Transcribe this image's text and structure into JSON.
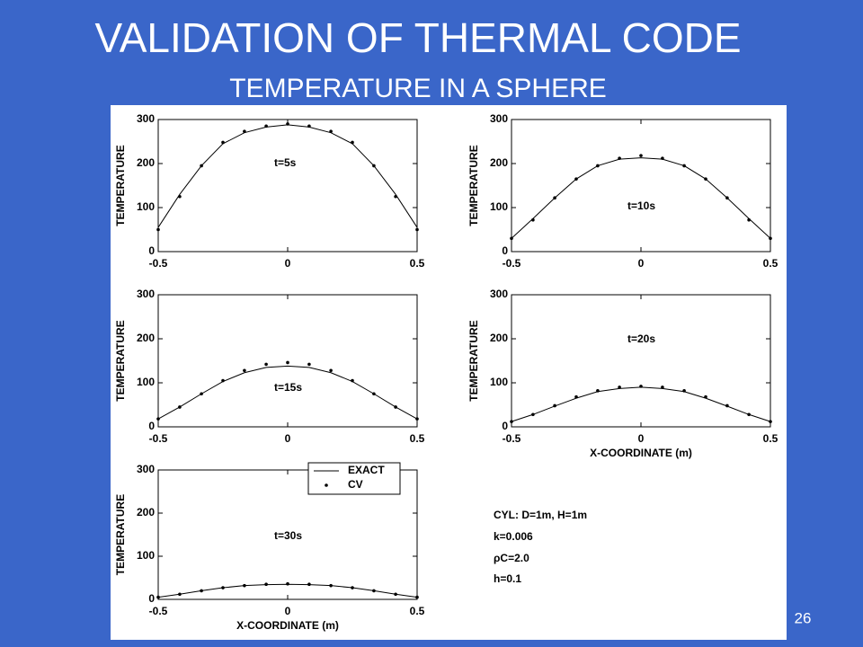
{
  "title": "VALIDATION OF THERMAL CODE",
  "subtitle": "TEMPERATURE IN A SPHERE",
  "page_number": "26",
  "notes": [
    "CYL: D=1m, H=1m",
    "k=0.006",
    "ρC=2.0",
    "h=0.1"
  ],
  "chart_data": [
    {
      "type": "line",
      "annotation": "t=5s",
      "ylabel": "TEMPERATURE",
      "x": [
        -0.5,
        -0.417,
        -0.333,
        -0.25,
        -0.167,
        -0.083,
        0,
        0.083,
        0.167,
        0.25,
        0.333,
        0.417,
        0.5
      ],
      "series": [
        {
          "name": "EXACT",
          "color": "#000000",
          "style": "line",
          "values": [
            55,
            130,
            195,
            245,
            270,
            283,
            288,
            283,
            270,
            245,
            195,
            130,
            55
          ]
        },
        {
          "name": "CV",
          "color": "#000000",
          "style": "markers",
          "values": [
            50,
            125,
            195,
            248,
            273,
            285,
            290,
            285,
            273,
            248,
            195,
            125,
            50
          ]
        }
      ],
      "xlim": [
        -0.5,
        0.5
      ],
      "xticks": [
        -0.5,
        0,
        0.5
      ],
      "ylim": [
        0,
        300
      ],
      "yticks": [
        0,
        100,
        200,
        300
      ]
    },
    {
      "type": "line",
      "annotation": "t=10s",
      "ylabel": "TEMPERATURE",
      "x": [
        -0.5,
        -0.417,
        -0.333,
        -0.25,
        -0.167,
        -0.083,
        0,
        0.083,
        0.167,
        0.25,
        0.333,
        0.417,
        0.5
      ],
      "series": [
        {
          "name": "EXACT",
          "color": "#000000",
          "style": "line",
          "values": [
            30,
            75,
            122,
            165,
            195,
            210,
            213,
            210,
            195,
            165,
            122,
            75,
            30
          ]
        },
        {
          "name": "CV",
          "color": "#000000",
          "style": "markers",
          "values": [
            30,
            72,
            122,
            165,
            195,
            212,
            218,
            212,
            195,
            165,
            122,
            72,
            30
          ]
        }
      ],
      "xlim": [
        -0.5,
        0.5
      ],
      "xticks": [
        -0.5,
        0,
        0.5
      ],
      "ylim": [
        0,
        300
      ],
      "yticks": [
        0,
        100,
        200,
        300
      ]
    },
    {
      "type": "line",
      "annotation": "t=15s",
      "ylabel": "TEMPERATURE",
      "x": [
        -0.5,
        -0.417,
        -0.333,
        -0.25,
        -0.167,
        -0.083,
        0,
        0.083,
        0.167,
        0.25,
        0.333,
        0.417,
        0.5
      ],
      "series": [
        {
          "name": "EXACT",
          "color": "#000000",
          "style": "line",
          "values": [
            18,
            45,
            75,
            103,
            123,
            135,
            138,
            135,
            123,
            103,
            75,
            45,
            18
          ]
        },
        {
          "name": "CV",
          "color": "#000000",
          "style": "markers",
          "values": [
            18,
            45,
            75,
            105,
            128,
            142,
            146,
            142,
            128,
            105,
            75,
            45,
            18
          ]
        }
      ],
      "xlim": [
        -0.5,
        0.5
      ],
      "xticks": [
        -0.5,
        0,
        0.5
      ],
      "ylim": [
        0,
        300
      ],
      "yticks": [
        0,
        100,
        200,
        300
      ]
    },
    {
      "type": "line",
      "annotation": "t=20s",
      "ylabel": "TEMPERATURE",
      "xlabel": "X-COORDINATE (m)",
      "x": [
        -0.5,
        -0.417,
        -0.333,
        -0.25,
        -0.167,
        -0.083,
        0,
        0.083,
        0.167,
        0.25,
        0.333,
        0.417,
        0.5
      ],
      "series": [
        {
          "name": "EXACT",
          "color": "#000000",
          "style": "line",
          "values": [
            12,
            28,
            47,
            65,
            80,
            87,
            90,
            87,
            80,
            65,
            47,
            28,
            12
          ]
        },
        {
          "name": "CV",
          "color": "#000000",
          "style": "markers",
          "values": [
            12,
            28,
            48,
            68,
            82,
            90,
            92,
            90,
            82,
            68,
            48,
            28,
            12
          ]
        }
      ],
      "xlim": [
        -0.5,
        0.5
      ],
      "xticks": [
        -0.5,
        0,
        0.5
      ],
      "ylim": [
        0,
        300
      ],
      "yticks": [
        0,
        100,
        200,
        300
      ]
    },
    {
      "type": "line",
      "annotation": "t=30s",
      "ylabel": "TEMPERATURE",
      "xlabel": "X-COORDINATE (m)",
      "legend": "upper right",
      "x": [
        -0.5,
        -0.417,
        -0.333,
        -0.25,
        -0.167,
        -0.083,
        0,
        0.083,
        0.167,
        0.25,
        0.333,
        0.417,
        0.5
      ],
      "series": [
        {
          "name": "EXACT",
          "color": "#000000",
          "style": "line",
          "values": [
            5,
            12,
            20,
            27,
            32,
            34,
            35,
            34,
            32,
            27,
            20,
            12,
            5
          ]
        },
        {
          "name": "CV",
          "color": "#000000",
          "style": "markers",
          "values": [
            5,
            12,
            20,
            27,
            32,
            35,
            36,
            35,
            32,
            27,
            20,
            12,
            5
          ]
        }
      ],
      "xlim": [
        -0.5,
        0.5
      ],
      "xticks": [
        -0.5,
        0,
        0.5
      ],
      "ylim": [
        0,
        300
      ],
      "yticks": [
        0,
        100,
        200,
        300
      ]
    }
  ]
}
